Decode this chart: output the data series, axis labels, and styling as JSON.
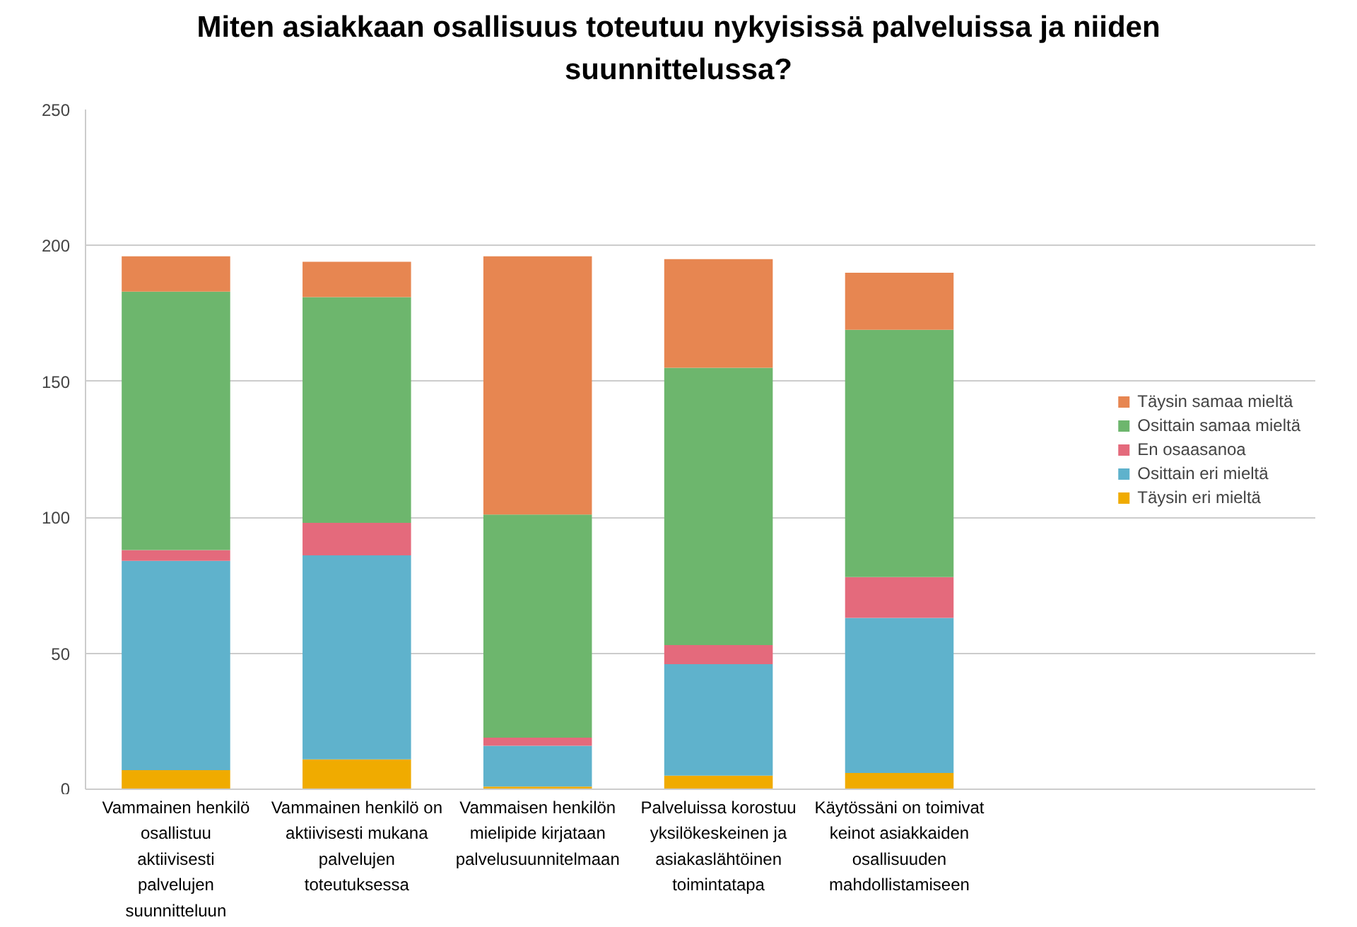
{
  "chart_data": {
    "type": "bar",
    "stacked": true,
    "title": "Miten asiakkaan osallisuus toteutuu nykyisissä palveluissa ja niiden suunnittelussa?",
    "categories": [
      "Vammainen henkilö osallistuu aktiivisesti palvelujen suunnitteluun",
      "Vammainen henkilö on aktiivisesti mukana palvelujen toteutuksessa",
      "Vammaisen henkilön mielipide kirjataan palvelusuunnitelmaan",
      "Palveluissa korostuu yksilökeskeinen ja asiakaslähtöinen toimintatapa",
      "Käytössäni on toimivat keinot asiakkaiden osallisuuden mahdollistamiseen"
    ],
    "series": [
      {
        "name": "Täysin eri mieltä",
        "color": "#f0ab00",
        "values": [
          7,
          11,
          1,
          5,
          6
        ]
      },
      {
        "name": "Osittain eri mieltä",
        "color": "#5fb2cc",
        "values": [
          77,
          75,
          15,
          41,
          57
        ]
      },
      {
        "name": "En osaasanoa",
        "color": "#e46a7c",
        "values": [
          4,
          12,
          3,
          7,
          15
        ]
      },
      {
        "name": "Osittain samaa mieltä",
        "color": "#6db66d",
        "values": [
          95,
          83,
          82,
          102,
          91
        ]
      },
      {
        "name": "Täysin samaa mieltä",
        "color": "#e78651",
        "values": [
          13,
          13,
          95,
          40,
          21
        ]
      }
    ],
    "ylim": [
      0,
      250
    ],
    "yticks": [
      0,
      50,
      100,
      150,
      200,
      250
    ],
    "grid": "y",
    "legend": "right"
  }
}
